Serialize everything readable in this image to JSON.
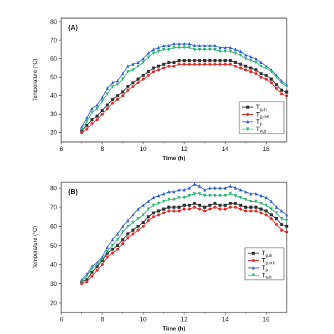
{
  "chart_data": [
    {
      "type": "line",
      "panel_label": "(A)",
      "xlabel": "Time (h)",
      "ylabel": "Temperature (°C)",
      "xlim": [
        6,
        17
      ],
      "ylim": [
        15,
        82
      ],
      "xticks": [
        6,
        8,
        10,
        12,
        14,
        16
      ],
      "yticks": [
        20,
        30,
        40,
        50,
        60,
        70,
        80
      ],
      "legend_position": "bottom-right",
      "x": [
        7.0,
        7.25,
        7.5,
        7.75,
        8.0,
        8.25,
        8.5,
        8.75,
        9.0,
        9.25,
        9.5,
        9.75,
        10.0,
        10.25,
        10.5,
        10.75,
        11.0,
        11.25,
        11.5,
        11.75,
        12.0,
        12.25,
        12.5,
        12.75,
        13.0,
        13.25,
        13.5,
        13.75,
        14.0,
        14.25,
        14.5,
        14.75,
        15.0,
        15.25,
        15.5,
        15.75,
        16.0,
        16.25,
        16.5,
        16.75,
        17.0
      ],
      "series": [
        {
          "name_main": "T",
          "name_sub": "g,in",
          "color": "#333333",
          "marker": "square",
          "values": [
            21,
            24,
            27,
            29,
            32,
            35,
            38,
            40,
            42,
            45,
            47,
            49,
            51,
            53,
            55,
            56,
            57,
            58,
            58,
            59,
            59,
            59,
            59,
            59,
            59,
            59,
            59,
            59,
            59,
            59,
            58,
            57,
            56,
            55,
            54,
            52,
            51,
            49,
            46,
            43,
            42
          ]
        },
        {
          "name_main": "T",
          "name_sub": "g,out",
          "color": "#e03030",
          "marker": "circle",
          "values": [
            20,
            22,
            25,
            27,
            30,
            33,
            36,
            38,
            40,
            43,
            45,
            47,
            49,
            51,
            53,
            54,
            55,
            56,
            56,
            57,
            57,
            57,
            57,
            57,
            57,
            57,
            57,
            57,
            57,
            57,
            56,
            55,
            54,
            53,
            52,
            50,
            49,
            47,
            44,
            41,
            40
          ]
        },
        {
          "name_main": "T",
          "name_sub": "p",
          "color": "#2f5fd0",
          "marker": "triangle",
          "values": [
            23,
            28,
            33,
            35,
            39,
            44,
            47,
            48,
            52,
            56,
            57,
            58,
            60,
            63,
            65,
            66,
            67,
            67,
            68,
            68,
            68,
            68,
            67,
            67,
            67,
            67,
            67,
            66,
            66,
            66,
            65,
            64,
            62,
            61,
            60,
            58,
            56,
            54,
            51,
            48,
            46
          ]
        },
        {
          "name_main": "T",
          "name_sub": "w,p",
          "color": "#2bb673",
          "marker": "triangle-down",
          "values": [
            22,
            26,
            31,
            33,
            37,
            41,
            45,
            46,
            49,
            53,
            54,
            56,
            58,
            61,
            63,
            64,
            65,
            65,
            66,
            66,
            66,
            66,
            65,
            65,
            65,
            65,
            65,
            64,
            64,
            64,
            63,
            62,
            60,
            59,
            58,
            56,
            55,
            53,
            50,
            47,
            45
          ]
        }
      ]
    },
    {
      "type": "line",
      "panel_label": "(B)",
      "xlabel": "Time (h)",
      "ylabel": "Temperature (°C)",
      "xlim": [
        6,
        17
      ],
      "ylim": [
        15,
        83
      ],
      "xticks": [
        6,
        8,
        10,
        12,
        14,
        16
      ],
      "yticks": [
        20,
        30,
        40,
        50,
        60,
        70,
        80
      ],
      "legend_position": "bottom-right",
      "x": [
        7.0,
        7.25,
        7.5,
        7.75,
        8.0,
        8.25,
        8.5,
        8.75,
        9.0,
        9.25,
        9.5,
        9.75,
        10.0,
        10.25,
        10.5,
        10.75,
        11.0,
        11.25,
        11.5,
        11.75,
        12.0,
        12.25,
        12.5,
        12.75,
        13.0,
        13.25,
        13.5,
        13.75,
        14.0,
        14.25,
        14.5,
        14.75,
        15.0,
        15.25,
        15.5,
        15.75,
        16.0,
        16.25,
        16.5,
        16.75,
        17.0
      ],
      "series": [
        {
          "name_main": "T",
          "name_sub": "g,in",
          "color": "#333333",
          "marker": "square",
          "values": [
            31,
            32,
            36,
            39,
            42,
            46,
            48,
            50,
            53,
            56,
            58,
            60,
            62,
            65,
            67,
            68,
            69,
            70,
            70,
            70,
            71,
            71,
            72,
            71,
            70,
            71,
            72,
            71,
            71,
            72,
            72,
            71,
            70,
            70,
            70,
            69,
            68,
            66,
            64,
            61,
            60
          ]
        },
        {
          "name_main": "T",
          "name_sub": "g,out",
          "color": "#e03030",
          "marker": "circle",
          "values": [
            30,
            31,
            34,
            37,
            40,
            44,
            46,
            48,
            51,
            54,
            56,
            58,
            60,
            63,
            65,
            66,
            67,
            68,
            68,
            68,
            69,
            69,
            70,
            69,
            68,
            69,
            70,
            69,
            69,
            70,
            70,
            69,
            68,
            68,
            68,
            67,
            66,
            64,
            61,
            58,
            57
          ]
        },
        {
          "name_main": "T",
          "name_sub": "p",
          "color": "#2f5fd0",
          "marker": "triangle",
          "values": [
            32,
            35,
            39,
            41,
            44,
            49,
            53,
            56,
            60,
            63,
            66,
            69,
            71,
            73,
            75,
            76,
            77,
            78,
            78,
            79,
            79,
            80,
            82,
            81,
            79,
            80,
            80,
            80,
            80,
            81,
            80,
            79,
            78,
            77,
            77,
            76,
            75,
            73,
            70,
            68,
            66
          ]
        },
        {
          "name_main": "T",
          "name_sub": "w,b",
          "color": "#2bb673",
          "marker": "triangle-down",
          "values": [
            31,
            34,
            38,
            40,
            43,
            47,
            50,
            53,
            57,
            60,
            62,
            64,
            66,
            69,
            71,
            72,
            73,
            74,
            74,
            75,
            75,
            76,
            77,
            77,
            76,
            76,
            76,
            76,
            76,
            77,
            76,
            75,
            74,
            73,
            73,
            72,
            71,
            69,
            67,
            64,
            63
          ]
        }
      ]
    }
  ]
}
